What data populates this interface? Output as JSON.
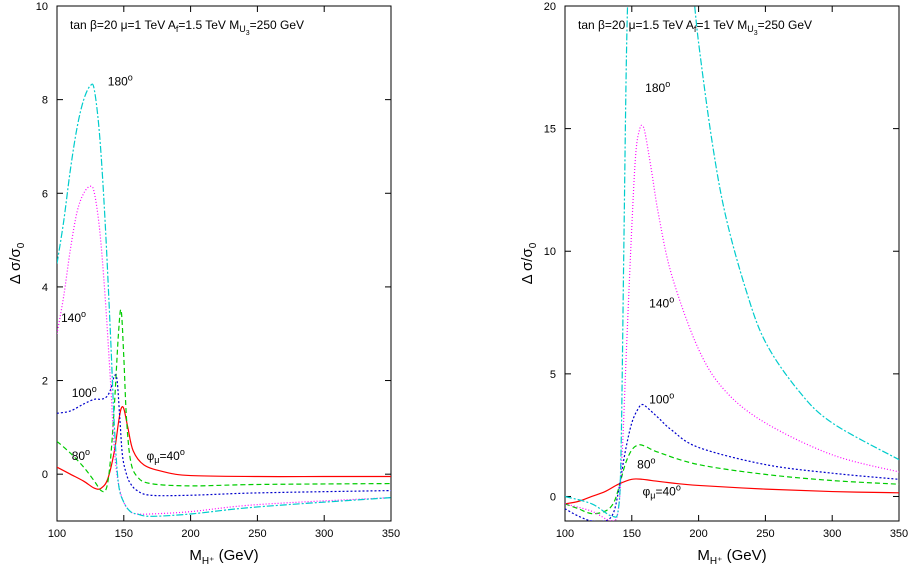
{
  "chart_data": [
    {
      "type": "line",
      "title": "",
      "annotation": {
        "p1": "tan β=20",
        "p2": "μ=1 TeV",
        "p3": "A",
        "p3sub": "f",
        "p4": "=1.5 TeV",
        "p5": "M",
        "p5sub": "U",
        "p5subsub": "3",
        "p6": "=250 GeV"
      },
      "xlabel": {
        "main": "M",
        "sub": "H⁺",
        "unit": " (GeV)"
      },
      "ylabel": {
        "pre": "Δ σ/σ",
        "sub": "0"
      },
      "xlim": [
        100,
        350
      ],
      "ylim": [
        -1,
        10
      ],
      "xticks": [
        "100",
        "150",
        "200",
        "250",
        "300",
        "350"
      ],
      "yticks": [
        "0",
        "2",
        "4",
        "6",
        "8",
        "10"
      ],
      "series": [
        {
          "name": "φ",
          "name_sub": "μ",
          "name_rest": "=40",
          "sup": "o",
          "color": "#ff0000",
          "dash": "",
          "x": [
            100,
            110,
            120,
            128,
            133,
            138,
            143,
            146,
            148,
            150,
            153,
            157,
            165,
            180,
            200,
            250,
            300,
            350
          ],
          "y": [
            0.15,
            0.0,
            -0.15,
            -0.3,
            -0.3,
            -0.1,
            0.5,
            1.1,
            1.4,
            1.4,
            1.0,
            0.5,
            0.2,
            0.05,
            -0.03,
            -0.05,
            -0.05,
            -0.05
          ],
          "label_at": [
            167,
            0.3
          ]
        },
        {
          "name": "80",
          "sup": "o",
          "color": "#00cc00",
          "dash": "5,3",
          "x": [
            100,
            110,
            120,
            128,
            133,
            137,
            140,
            143,
            146,
            148,
            150,
            152,
            155,
            160,
            170,
            200,
            250,
            350
          ],
          "y": [
            0.7,
            0.45,
            0.15,
            -0.15,
            -0.35,
            -0.3,
            0.3,
            1.5,
            3.0,
            3.5,
            2.5,
            1.2,
            0.3,
            -0.05,
            -0.2,
            -0.25,
            -0.22,
            -0.2
          ],
          "label_at": [
            111,
            0.3
          ]
        },
        {
          "name": "100",
          "sup": "o",
          "color": "#0000cc",
          "dash": "2,2",
          "x": [
            100,
            110,
            120,
            128,
            133,
            137,
            140,
            143,
            145,
            147,
            149,
            152,
            155,
            160,
            170,
            200,
            250,
            350
          ],
          "y": [
            1.3,
            1.35,
            1.5,
            1.6,
            1.6,
            1.65,
            1.8,
            2.1,
            2.0,
            1.2,
            0.4,
            0.0,
            -0.2,
            -0.35,
            -0.45,
            -0.45,
            -0.4,
            -0.35
          ],
          "label_at": [
            111,
            1.65
          ]
        },
        {
          "name": "140",
          "sup": "o",
          "color": "#ff00ff",
          "dash": "1,2",
          "x": [
            100,
            105,
            110,
            115,
            120,
            125,
            128,
            132,
            136,
            140,
            143,
            146,
            150,
            155,
            160,
            170,
            200,
            250,
            350
          ],
          "y": [
            3.0,
            3.8,
            4.8,
            5.6,
            6.0,
            6.15,
            6.0,
            5.2,
            3.8,
            2.0,
            0.5,
            -0.2,
            -0.6,
            -0.8,
            -0.85,
            -0.85,
            -0.8,
            -0.65,
            -0.5
          ],
          "label_at": [
            103,
            3.25
          ]
        },
        {
          "name": "180",
          "sup": "o",
          "color": "#00cccc",
          "dash": "7,2,2,2",
          "x": [
            100,
            105,
            110,
            115,
            120,
            125,
            128,
            132,
            136,
            140,
            143,
            146,
            150,
            155,
            160,
            170,
            200,
            250,
            350
          ],
          "y": [
            4.5,
            5.4,
            6.5,
            7.4,
            8.0,
            8.3,
            8.2,
            7.2,
            5.4,
            3.0,
            1.0,
            -0.2,
            -0.6,
            -0.8,
            -0.85,
            -0.9,
            -0.85,
            -0.7,
            -0.5
          ],
          "label_at": [
            138,
            8.3
          ]
        }
      ]
    },
    {
      "type": "line",
      "title": "",
      "annotation": {
        "p1": "tan β=20",
        "p2": "μ=1.5 TeV",
        "p3": "A",
        "p3sub": "f",
        "p4": "=1 TeV",
        "p5": "M",
        "p5sub": "U",
        "p5subsub": "3",
        "p6": "=250 GeV"
      },
      "xlabel": {
        "main": "M",
        "sub": "H⁺",
        "unit": " (GeV)"
      },
      "ylabel": {
        "pre": "Δ σ/σ",
        "sub": "0"
      },
      "xlim": [
        100,
        350
      ],
      "ylim": [
        -1,
        20
      ],
      "xticks": [
        "100",
        "150",
        "200",
        "250",
        "300",
        "350"
      ],
      "yticks": [
        "0",
        "5",
        "10",
        "15",
        "20"
      ],
      "series": [
        {
          "name": "φ",
          "name_sub": "μ",
          "name_rest": "=40",
          "sup": "o",
          "color": "#ff0000",
          "dash": "",
          "x": [
            100,
            110,
            120,
            130,
            140,
            150,
            158,
            165,
            180,
            200,
            250,
            300,
            350
          ],
          "y": [
            -0.3,
            -0.2,
            0.0,
            0.2,
            0.5,
            0.7,
            0.7,
            0.65,
            0.55,
            0.45,
            0.3,
            0.2,
            0.15
          ],
          "label_at": [
            158,
            0.05
          ]
        },
        {
          "name": "80",
          "sup": "o",
          "color": "#00cc00",
          "dash": "5,3",
          "x": [
            100,
            110,
            120,
            130,
            136,
            140,
            145,
            150,
            155,
            160,
            170,
            200,
            250,
            300,
            350
          ],
          "y": [
            -0.3,
            -0.5,
            -0.7,
            -0.6,
            -0.3,
            0.3,
            1.3,
            1.9,
            2.1,
            2.05,
            1.8,
            1.3,
            0.9,
            0.65,
            0.5
          ],
          "label_at": [
            154,
            1.15
          ]
        },
        {
          "name": "100",
          "sup": "o",
          "color": "#0000cc",
          "dash": "2,2",
          "x": [
            100,
            110,
            120,
            130,
            136,
            140,
            145,
            150,
            155,
            158,
            162,
            170,
            180,
            200,
            250,
            300,
            350
          ],
          "y": [
            -0.5,
            -0.8,
            -1.0,
            -1.0,
            -0.7,
            0.2,
            1.8,
            3.0,
            3.6,
            3.75,
            3.6,
            3.2,
            2.7,
            2.0,
            1.3,
            0.95,
            0.7
          ],
          "label_at": [
            163,
            3.8
          ]
        },
        {
          "name": "140",
          "sup": "o",
          "color": "#ff00ff",
          "dash": "1,2",
          "x": [
            100,
            120,
            135,
            140,
            143,
            146,
            150,
            153,
            156,
            158,
            160,
            165,
            170,
            180,
            200,
            220,
            250,
            300,
            350
          ],
          "y": [
            -0.3,
            -0.6,
            -1.0,
            -0.5,
            2.0,
            6.0,
            11.0,
            14.0,
            15.0,
            15.1,
            14.8,
            13.2,
            11.5,
            9.0,
            6.0,
            4.3,
            3.0,
            1.7,
            1.0
          ],
          "label_at": [
            163,
            7.7
          ]
        },
        {
          "name": "180",
          "sup": "o",
          "color": "#00cccc",
          "dash": "7,2,2,2",
          "x": [
            100,
            120,
            135,
            140,
            142,
            144,
            146,
            148,
            150,
            190,
            195,
            200,
            210,
            220,
            235,
            250,
            275,
            300,
            350
          ],
          "y": [
            0.0,
            -0.3,
            -0.8,
            -0.5,
            2.0,
            10.0,
            18.0,
            22.0,
            24.0,
            22.0,
            21.0,
            18.5,
            14.5,
            11.5,
            8.5,
            6.3,
            4.3,
            3.0,
            1.5
          ],
          "label_at": [
            160,
            16.5
          ]
        }
      ]
    }
  ]
}
